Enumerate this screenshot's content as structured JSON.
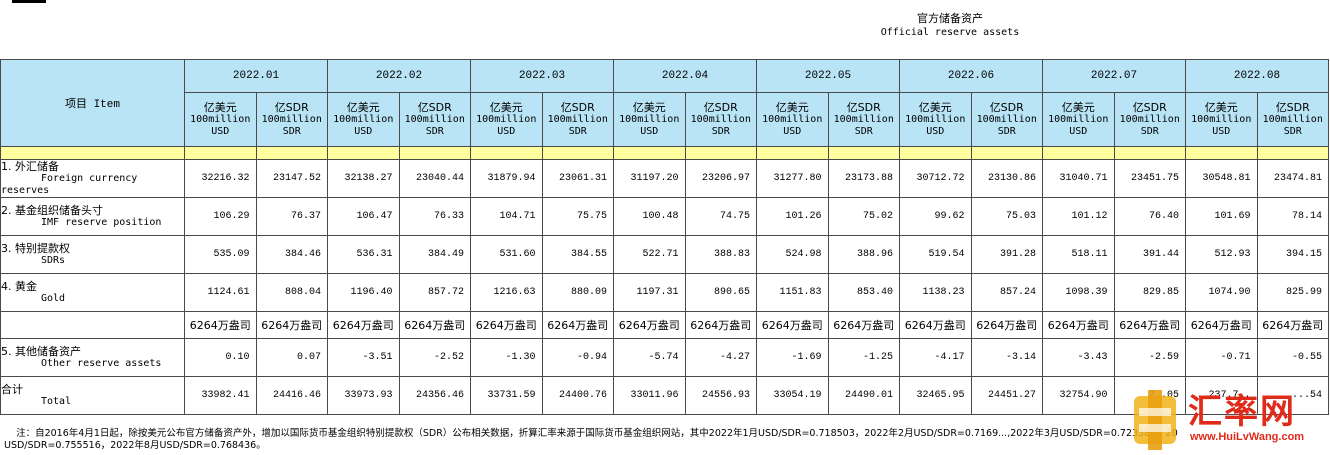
{
  "heading": {
    "cn": "官方储备资产",
    "en": "Official reserve assets"
  },
  "table": {
    "item_header": "项目  Item",
    "months": [
      "2022.01",
      "2022.02",
      "2022.03",
      "2022.04",
      "2022.05",
      "2022.06",
      "2022.07",
      "2022.08"
    ],
    "unit_usd": [
      "亿美元",
      "100million",
      "USD"
    ],
    "unit_sdr": [
      "亿SDR",
      "100million",
      "SDR"
    ],
    "rows": [
      {
        "cn": "1.  外汇储备",
        "en": "Foreign currency",
        "en2": "reserves",
        "values": [
          "32216.32",
          "23147.52",
          "32138.27",
          "23040.44",
          "31879.94",
          "23061.31",
          "31197.20",
          "23206.97",
          "31277.80",
          "23173.88",
          "30712.72",
          "23130.86",
          "31040.71",
          "23451.75",
          "30548.81",
          "23474.81"
        ]
      },
      {
        "cn": "2.  基金组织储备头寸",
        "en": "IMF reserve position",
        "en2": "",
        "values": [
          "106.29",
          "76.37",
          "106.47",
          "76.33",
          "104.71",
          "75.75",
          "100.48",
          "74.75",
          "101.26",
          "75.02",
          "99.62",
          "75.03",
          "101.12",
          "76.40",
          "101.69",
          "78.14"
        ]
      },
      {
        "cn": "3.  特别提款权",
        "en": "SDRs",
        "en2": "",
        "values": [
          "535.09",
          "384.46",
          "536.31",
          "384.49",
          "531.60",
          "384.55",
          "522.71",
          "388.83",
          "524.98",
          "388.96",
          "519.54",
          "391.28",
          "518.11",
          "391.44",
          "512.93",
          "394.15"
        ]
      },
      {
        "cn": "4.  黄金",
        "en": "Gold",
        "en2": "",
        "values": [
          "1124.61",
          "808.04",
          "1196.40",
          "857.72",
          "1216.63",
          "880.09",
          "1197.31",
          "890.65",
          "1151.83",
          "853.40",
          "1138.23",
          "857.24",
          "1098.39",
          "829.85",
          "1074.90",
          "825.99"
        ]
      },
      {
        "cn": "",
        "en": "",
        "en2": "",
        "values": [
          "6264万盎司",
          "6264万盎司",
          "6264万盎司",
          "6264万盎司",
          "6264万盎司",
          "6264万盎司",
          "6264万盎司",
          "6264万盎司",
          "6264万盎司",
          "6264万盎司",
          "6264万盎司",
          "6264万盎司",
          "6264万盎司",
          "6264万盎司",
          "6264万盎司",
          "6264万盎司"
        ]
      },
      {
        "cn": "5.  其他储备资产",
        "en": "Other reserve assets",
        "en2": "",
        "values": [
          "0.10",
          "0.07",
          "-3.51",
          "-2.52",
          "-1.30",
          "-0.94",
          "-5.74",
          "-4.27",
          "-1.69",
          "-1.25",
          "-4.17",
          "-3.14",
          "-3.43",
          "-2.59",
          "-0.71",
          "-0.55"
        ]
      },
      {
        "cn": "    合计",
        "en": "Total",
        "en2": "",
        "values": [
          "33982.41",
          "24416.46",
          "33973.93",
          "24356.46",
          "33731.59",
          "24400.76",
          "33011.96",
          "24556.93",
          "33054.19",
          "24490.01",
          "32465.95",
          "24451.27",
          "32754.90",
          "2..05",
          "..237.7..",
          ".....54"
        ]
      }
    ]
  },
  "footnote": "    注：自2016年4月1日起，除按美元公布官方储备资产外，增加以国际货币基金组织特别提款权（SDR）公布相关数据，折算汇率来源于国际货币基金组织网站，其中2022年1月USD/SDR=0.718503，2022年2月USD/SDR=0.7169...,2022年3月USD/SDR=0.723380，20\nUSD/SDR=0.755516，2022年8月USD/SDR=0.768436。",
  "watermark": {
    "title": "汇率网",
    "url": "www.HuiLvWang.com"
  },
  "colors": {
    "header_bg": "#b9e4f6",
    "band": "#ffffa0",
    "watermark": "#e02a1a"
  }
}
